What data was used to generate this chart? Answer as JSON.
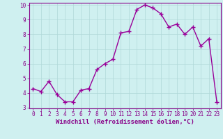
{
  "x": [
    0,
    1,
    2,
    3,
    4,
    5,
    6,
    7,
    8,
    9,
    10,
    11,
    12,
    13,
    14,
    15,
    16,
    17,
    18,
    19,
    20,
    21,
    22,
    23
  ],
  "y": [
    4.3,
    4.1,
    4.8,
    3.9,
    3.4,
    3.4,
    4.2,
    4.3,
    5.6,
    6.0,
    6.3,
    8.1,
    8.2,
    9.7,
    10.0,
    9.8,
    9.4,
    8.5,
    8.7,
    8.0,
    8.5,
    7.2,
    7.7,
    3.4
  ],
  "line_color": "#990099",
  "marker": "+",
  "marker_size": 4,
  "line_width": 1.0,
  "bg_color": "#cff0f0",
  "grid_color": "#b0d8d8",
  "xlabel": "Windchill (Refroidissement éolien,°C)",
  "xlabel_color": "#880088",
  "xlabel_fontsize": 6.5,
  "ylim": [
    3,
    10
  ],
  "xlim": [
    -0.5,
    23.5
  ],
  "yticks": [
    3,
    4,
    5,
    6,
    7,
    8,
    9,
    10
  ],
  "xticks": [
    0,
    1,
    2,
    3,
    4,
    5,
    6,
    7,
    8,
    9,
    10,
    11,
    12,
    13,
    14,
    15,
    16,
    17,
    18,
    19,
    20,
    21,
    22,
    23
  ],
  "tick_fontsize": 5.5,
  "axis_color": "#880088",
  "spine_color": "#880088",
  "grid_linewidth": 0.5
}
